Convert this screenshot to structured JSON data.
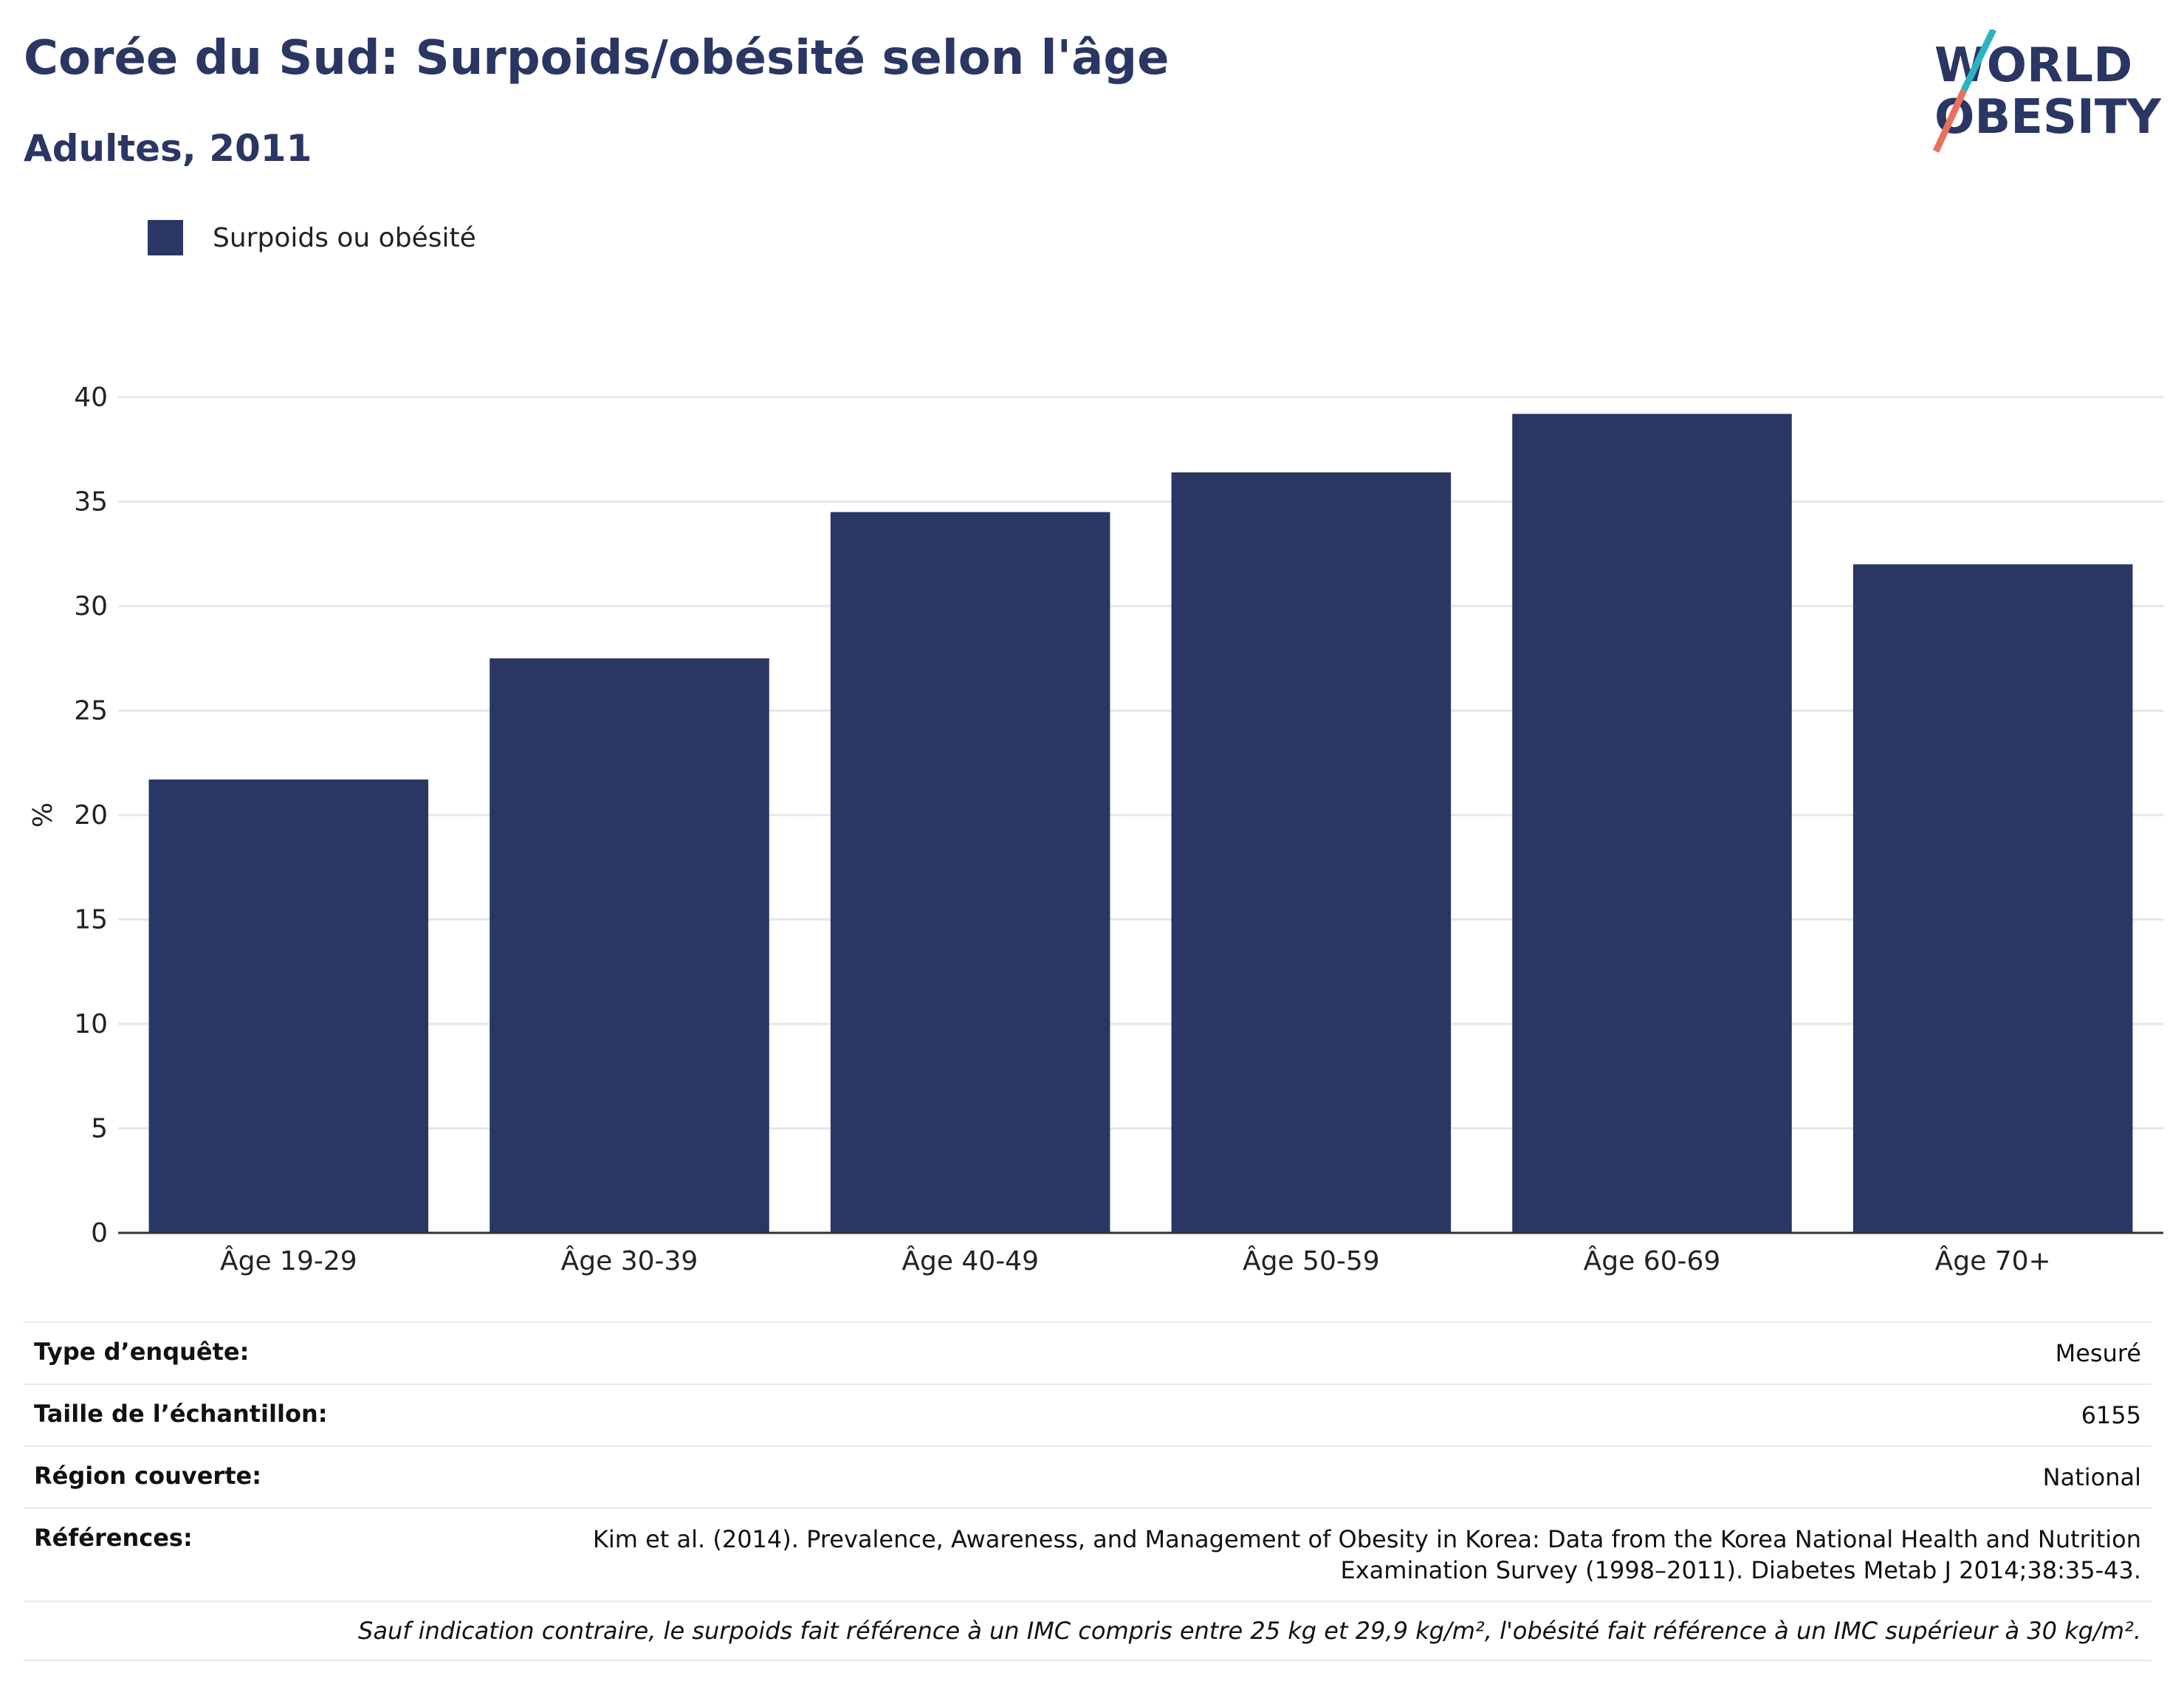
{
  "header": {
    "title": "Corée du Sud: Surpoids/obésité selon l'âge",
    "subtitle": "Adultes, 2011",
    "logo_line1": "WORLD",
    "logo_line2": "OBESITY"
  },
  "legend": {
    "label": "Surpoids ou obésité",
    "color": "#2a3663"
  },
  "chart_data": {
    "type": "bar",
    "categories": [
      "Âge 19-29",
      "Âge 30-39",
      "Âge 40-49",
      "Âge 50-59",
      "Âge 60-69",
      "Âge 70+"
    ],
    "series": [
      {
        "name": "Surpoids ou obésité",
        "values": [
          21.7,
          27.5,
          34.5,
          36.4,
          39.2,
          32.0
        ]
      }
    ],
    "ylabel": "%",
    "ylim": [
      0,
      40
    ],
    "yticks": [
      0,
      5,
      10,
      15,
      20,
      25,
      30,
      35,
      40
    ],
    "grid": true,
    "legend_position": "top-left",
    "bar_color": "#2a3663"
  },
  "info": {
    "rows": [
      {
        "key": "Type d’enquête:",
        "value": "Mesuré"
      },
      {
        "key": "Taille de l’échantillon:",
        "value": "6155"
      },
      {
        "key": "Région couverte:",
        "value": "National"
      },
      {
        "key": "Références:",
        "value": "Kim et al. (2014). Prevalence, Awareness, and Management of Obesity in Korea: Data from the Korea National Health and Nutrition Examination Survey (1998–2011). Diabetes Metab J 2014;38:35-43."
      }
    ],
    "note": "Sauf indication contraire, le surpoids fait référence à un IMC compris entre 25 kg et 29,9 kg/m², l'obésité fait référence à un IMC supérieur à 30 kg/m²."
  }
}
